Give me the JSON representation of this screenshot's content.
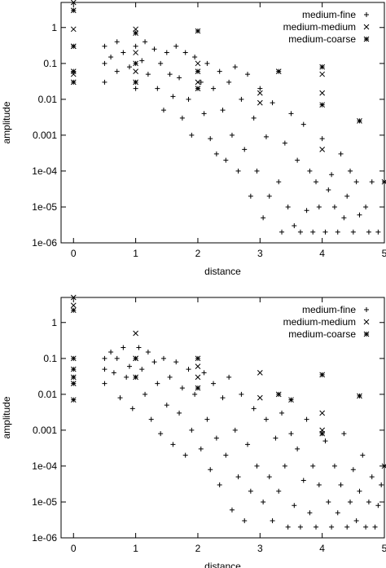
{
  "chart_data": [
    {
      "type": "scatter",
      "xlabel": "distance",
      "ylabel": "amplitude",
      "xlim": [
        -0.2,
        5
      ],
      "ylim": [
        1e-06,
        5
      ],
      "yscale": "log",
      "xticks": [
        0,
        1,
        2,
        3,
        4,
        5
      ],
      "yticks": [
        1,
        0.1,
        0.01,
        0.001,
        0.0001,
        1e-05,
        1e-06
      ],
      "xtick_labels": [
        "0",
        "1",
        "2",
        "3",
        "4",
        "5"
      ],
      "ytick_labels": [
        "1",
        "0.1",
        "0.01",
        "0.001",
        "1e-04",
        "1e-05",
        "1e-06"
      ],
      "grid": false,
      "legend_position": "top-right",
      "series": [
        {
          "name": "medium-fine",
          "marker": "plus",
          "points": [
            [
              0.5,
              0.3
            ],
            [
              0.5,
              0.1
            ],
            [
              0.5,
              0.03
            ],
            [
              0.6,
              0.15
            ],
            [
              0.7,
              0.4
            ],
            [
              0.7,
              0.06
            ],
            [
              0.8,
              0.2
            ],
            [
              0.9,
              0.08
            ],
            [
              1.0,
              0.3
            ],
            [
              1.0,
              0.02
            ],
            [
              1.1,
              0.12
            ],
            [
              1.15,
              0.4
            ],
            [
              1.2,
              0.05
            ],
            [
              1.3,
              0.25
            ],
            [
              1.35,
              0.02
            ],
            [
              1.4,
              0.1
            ],
            [
              1.45,
              0.005
            ],
            [
              1.5,
              0.2
            ],
            [
              1.55,
              0.05
            ],
            [
              1.6,
              0.012
            ],
            [
              1.65,
              0.3
            ],
            [
              1.7,
              0.04
            ],
            [
              1.75,
              0.003
            ],
            [
              1.8,
              0.2
            ],
            [
              1.85,
              0.01
            ],
            [
              1.9,
              0.001
            ],
            [
              1.95,
              0.15
            ],
            [
              2.05,
              0.03
            ],
            [
              2.1,
              0.004
            ],
            [
              2.15,
              0.1
            ],
            [
              2.2,
              0.0008
            ],
            [
              2.25,
              0.02
            ],
            [
              2.3,
              0.0003
            ],
            [
              2.35,
              0.06
            ],
            [
              2.4,
              0.005
            ],
            [
              2.45,
              0.0002
            ],
            [
              2.5,
              0.03
            ],
            [
              2.55,
              0.001
            ],
            [
              2.6,
              0.08
            ],
            [
              2.65,
              0.0001
            ],
            [
              2.7,
              0.01
            ],
            [
              2.75,
              0.0004
            ],
            [
              2.8,
              0.05
            ],
            [
              2.85,
              2e-05
            ],
            [
              2.9,
              0.003
            ],
            [
              2.95,
              0.0001
            ],
            [
              3.0,
              0.02
            ],
            [
              3.05,
              5e-06
            ],
            [
              3.1,
              0.0009
            ],
            [
              3.15,
              2e-05
            ],
            [
              3.2,
              0.008
            ],
            [
              3.3,
              5e-05
            ],
            [
              3.35,
              2e-06
            ],
            [
              3.4,
              0.0006
            ],
            [
              3.45,
              1e-05
            ],
            [
              3.5,
              0.004
            ],
            [
              3.55,
              3e-06
            ],
            [
              3.6,
              0.0002
            ],
            [
              3.65,
              2e-06
            ],
            [
              3.7,
              0.002
            ],
            [
              3.75,
              8e-06
            ],
            [
              3.8,
              0.0001
            ],
            [
              3.85,
              2e-06
            ],
            [
              3.9,
              5e-05
            ],
            [
              3.95,
              1e-05
            ],
            [
              4.0,
              0.0008
            ],
            [
              4.05,
              2e-06
            ],
            [
              4.1,
              3e-05
            ],
            [
              4.15,
              8e-05
            ],
            [
              4.2,
              1e-05
            ],
            [
              4.25,
              2e-06
            ],
            [
              4.3,
              0.0003
            ],
            [
              4.35,
              5e-06
            ],
            [
              4.4,
              2e-05
            ],
            [
              4.45,
              0.0001
            ],
            [
              4.5,
              2e-06
            ],
            [
              4.55,
              5e-05
            ],
            [
              4.6,
              6e-06
            ],
            [
              4.7,
              1e-05
            ],
            [
              4.75,
              2e-06
            ],
            [
              4.8,
              5e-05
            ],
            [
              4.9,
              2e-06
            ]
          ]
        },
        {
          "name": "medium-medium",
          "marker": "cross",
          "points": [
            [
              0.0,
              5
            ],
            [
              0.0,
              0.9
            ],
            [
              0.0,
              0.3
            ],
            [
              0.0,
              0.05
            ],
            [
              1.0,
              0.9
            ],
            [
              1.0,
              0.2
            ],
            [
              1.0,
              0.06
            ],
            [
              2.0,
              0.1
            ],
            [
              2.0,
              0.03
            ],
            [
              3.0,
              0.015
            ],
            [
              3.0,
              0.008
            ],
            [
              4.0,
              0.05
            ],
            [
              4.0,
              0.015
            ],
            [
              4.0,
              0.0004
            ]
          ]
        },
        {
          "name": "medium-coarse",
          "marker": "star",
          "points": [
            [
              0.0,
              3
            ],
            [
              0.0,
              0.3
            ],
            [
              0.0,
              0.06
            ],
            [
              0.0,
              0.03
            ],
            [
              1.0,
              0.7
            ],
            [
              1.0,
              0.1
            ],
            [
              1.0,
              0.03
            ],
            [
              2.0,
              0.8
            ],
            [
              2.0,
              0.06
            ],
            [
              2.0,
              0.02
            ],
            [
              3.3,
              0.06
            ],
            [
              4.0,
              0.08
            ],
            [
              4.0,
              0.007
            ],
            [
              4.6,
              0.0025
            ],
            [
              5.0,
              5e-05
            ]
          ]
        }
      ]
    },
    {
      "type": "scatter",
      "xlabel": "distance",
      "ylabel": "amplitude",
      "xlim": [
        -0.2,
        5
      ],
      "ylim": [
        1e-06,
        5
      ],
      "yscale": "log",
      "xticks": [
        0,
        1,
        2,
        3,
        4,
        5
      ],
      "yticks": [
        1,
        0.1,
        0.01,
        0.001,
        0.0001,
        1e-05,
        1e-06
      ],
      "xtick_labels": [
        "0",
        "1",
        "2",
        "3",
        "4",
        "5"
      ],
      "ytick_labels": [
        "1",
        "0.1",
        "0.01",
        "0.001",
        "1e-04",
        "1e-05",
        "1e-06"
      ],
      "grid": false,
      "legend_position": "top-right",
      "series": [
        {
          "name": "medium-fine",
          "marker": "plus",
          "points": [
            [
              0.5,
              0.1
            ],
            [
              0.5,
              0.05
            ],
            [
              0.5,
              0.02
            ],
            [
              0.6,
              0.15
            ],
            [
              0.65,
              0.04
            ],
            [
              0.7,
              0.1
            ],
            [
              0.75,
              0.008
            ],
            [
              0.8,
              0.2
            ],
            [
              0.85,
              0.03
            ],
            [
              0.9,
              0.06
            ],
            [
              0.95,
              0.004
            ],
            [
              1.05,
              0.2
            ],
            [
              1.1,
              0.05
            ],
            [
              1.15,
              0.01
            ],
            [
              1.2,
              0.15
            ],
            [
              1.25,
              0.002
            ],
            [
              1.3,
              0.08
            ],
            [
              1.35,
              0.02
            ],
            [
              1.4,
              0.0008
            ],
            [
              1.45,
              0.1
            ],
            [
              1.5,
              0.005
            ],
            [
              1.55,
              0.03
            ],
            [
              1.6,
              0.0004
            ],
            [
              1.65,
              0.08
            ],
            [
              1.7,
              0.003
            ],
            [
              1.75,
              0.015
            ],
            [
              1.8,
              0.0002
            ],
            [
              1.85,
              0.05
            ],
            [
              1.9,
              0.001
            ],
            [
              1.95,
              0.01
            ],
            [
              2.05,
              0.0003
            ],
            [
              2.1,
              0.04
            ],
            [
              2.15,
              0.002
            ],
            [
              2.2,
              8e-05
            ],
            [
              2.25,
              0.02
            ],
            [
              2.3,
              0.0006
            ],
            [
              2.35,
              3e-05
            ],
            [
              2.4,
              0.008
            ],
            [
              2.45,
              0.0002
            ],
            [
              2.5,
              0.03
            ],
            [
              2.55,
              6e-06
            ],
            [
              2.6,
              0.001
            ],
            [
              2.65,
              5e-05
            ],
            [
              2.7,
              0.01
            ],
            [
              2.75,
              3e-06
            ],
            [
              2.8,
              0.0004
            ],
            [
              2.85,
              2e-05
            ],
            [
              2.9,
              0.004
            ],
            [
              2.95,
              0.0001
            ],
            [
              3.05,
              1e-05
            ],
            [
              3.1,
              0.002
            ],
            [
              3.15,
              5e-05
            ],
            [
              3.2,
              3e-06
            ],
            [
              3.25,
              0.0006
            ],
            [
              3.3,
              2e-05
            ],
            [
              3.35,
              0.003
            ],
            [
              3.4,
              0.0001
            ],
            [
              3.45,
              2e-06
            ],
            [
              3.5,
              0.0008
            ],
            [
              3.55,
              8e-06
            ],
            [
              3.6,
              0.0003
            ],
            [
              3.65,
              2e-06
            ],
            [
              3.7,
              4e-05
            ],
            [
              3.75,
              0.002
            ],
            [
              3.8,
              5e-06
            ],
            [
              3.85,
              0.0001
            ],
            [
              3.9,
              2e-06
            ],
            [
              3.95,
              3e-05
            ],
            [
              4.05,
              0.0005
            ],
            [
              4.1,
              1e-05
            ],
            [
              4.15,
              2e-06
            ],
            [
              4.2,
              0.0001
            ],
            [
              4.25,
              5e-06
            ],
            [
              4.3,
              3e-05
            ],
            [
              4.35,
              0.0008
            ],
            [
              4.4,
              2e-06
            ],
            [
              4.45,
              1e-05
            ],
            [
              4.5,
              8e-05
            ],
            [
              4.55,
              3e-06
            ],
            [
              4.6,
              2e-05
            ],
            [
              4.65,
              0.0002
            ],
            [
              4.7,
              2e-06
            ],
            [
              4.75,
              1e-05
            ],
            [
              4.8,
              5e-05
            ],
            [
              4.85,
              2e-06
            ],
            [
              4.9,
              8e-06
            ],
            [
              4.95,
              3e-05
            ]
          ]
        },
        {
          "name": "medium-medium",
          "marker": "cross",
          "points": [
            [
              0.0,
              5
            ],
            [
              0.0,
              3
            ],
            [
              1.0,
              0.5
            ],
            [
              1.0,
              0.1
            ],
            [
              2.0,
              0.06
            ],
            [
              2.0,
              0.03
            ],
            [
              3.0,
              0.04
            ],
            [
              3.0,
              0.008
            ],
            [
              4.0,
              0.003
            ],
            [
              4.0,
              0.001
            ]
          ]
        },
        {
          "name": "medium-coarse",
          "marker": "star",
          "points": [
            [
              0.0,
              2.2
            ],
            [
              0.0,
              0.1
            ],
            [
              0.0,
              0.05
            ],
            [
              0.0,
              0.03
            ],
            [
              0.0,
              0.02
            ],
            [
              0.0,
              0.007
            ],
            [
              1.0,
              0.1
            ],
            [
              1.0,
              0.03
            ],
            [
              2.0,
              0.1
            ],
            [
              2.0,
              0.015
            ],
            [
              3.3,
              0.01
            ],
            [
              3.5,
              0.007
            ],
            [
              4.0,
              0.035
            ],
            [
              4.0,
              0.0008
            ],
            [
              4.6,
              0.009
            ],
            [
              5.0,
              0.0001
            ]
          ]
        }
      ]
    }
  ]
}
